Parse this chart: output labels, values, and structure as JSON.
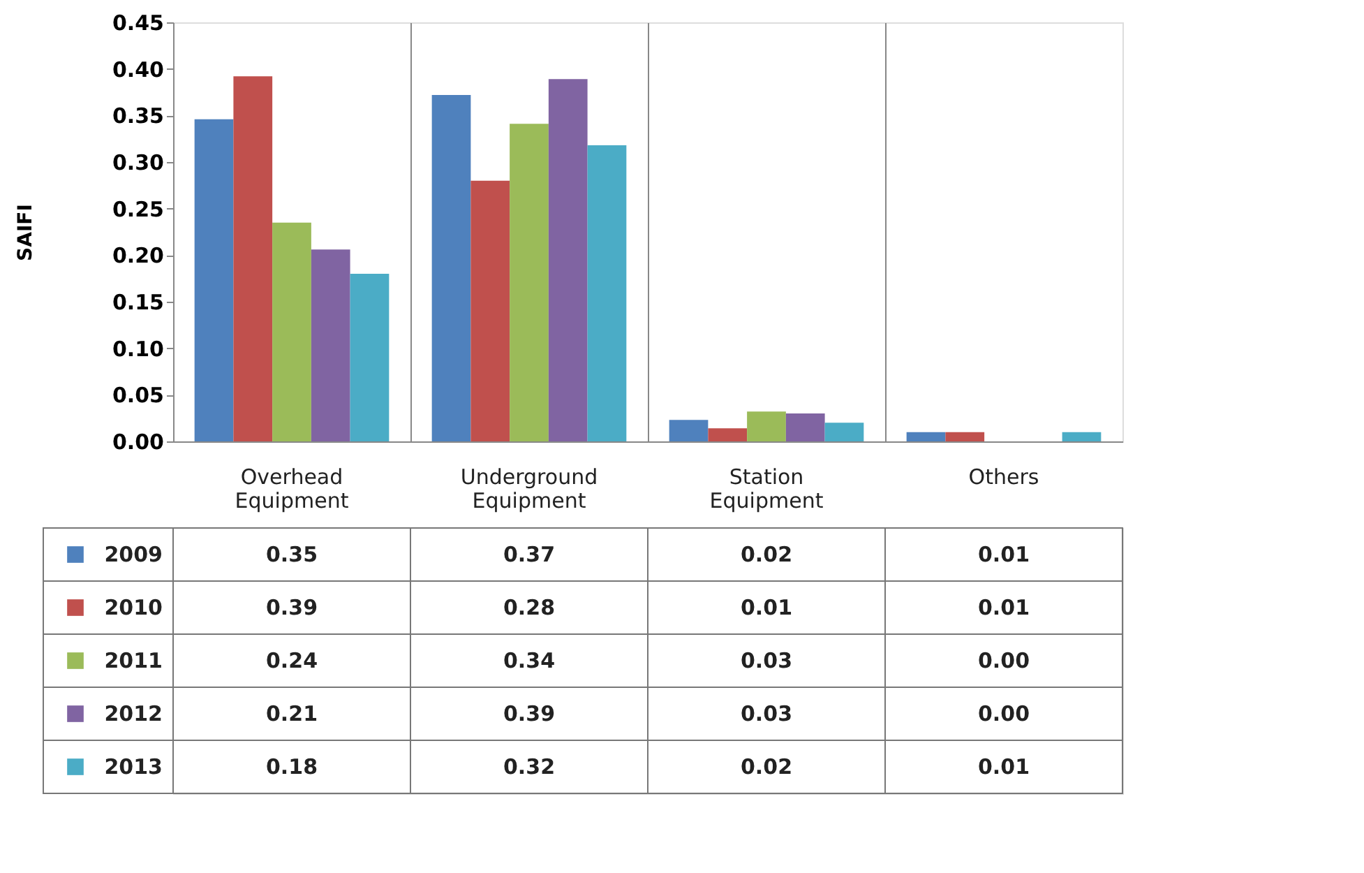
{
  "chart_data": {
    "type": "bar",
    "ylabel": "SAIFI",
    "categories": [
      "Overhead Equipment",
      "Underground Equipment",
      "Station Equipment",
      "Others"
    ],
    "ylim": [
      0,
      0.45
    ],
    "yticks": [
      {
        "value": 0,
        "label": "0.00"
      },
      {
        "value": 0.05,
        "label": "0.05"
      },
      {
        "value": 0.1,
        "label": "0.10"
      },
      {
        "value": 0.15,
        "label": "0.15"
      },
      {
        "value": 0.2,
        "label": "0.20"
      },
      {
        "value": 0.25,
        "label": "0.25"
      },
      {
        "value": 0.3,
        "label": "0.30"
      },
      {
        "value": 0.35,
        "label": "0.35"
      },
      {
        "value": 0.4,
        "label": "0.40"
      },
      {
        "value": 0.45,
        "label": "0.45"
      }
    ],
    "legend": "bottom",
    "series": [
      {
        "name": "2009",
        "color": "#4f81bd",
        "values": [
          0.346,
          0.372,
          0.023,
          0.01
        ],
        "value_labels": [
          "0.35",
          "0.37",
          "0.02",
          "0.01"
        ]
      },
      {
        "name": "2010",
        "color": "#c0504d",
        "values": [
          0.392,
          0.28,
          0.014,
          0.01
        ],
        "value_labels": [
          "0.39",
          "0.28",
          "0.01",
          "0.01"
        ]
      },
      {
        "name": "2011",
        "color": "#9bbb59",
        "values": [
          0.235,
          0.341,
          0.032,
          0
        ],
        "value_labels": [
          "0.24",
          "0.34",
          "0.03",
          "0.00"
        ]
      },
      {
        "name": "2012",
        "color": "#8064a2",
        "values": [
          0.206,
          0.389,
          0.03,
          0
        ],
        "value_labels": [
          "0.21",
          "0.39",
          "0.03",
          "0.00"
        ]
      },
      {
        "name": "2013",
        "color": "#4bacc6",
        "values": [
          0.18,
          0.318,
          0.02,
          0.01
        ],
        "value_labels": [
          "0.18",
          "0.32",
          "0.02",
          "0.01"
        ]
      }
    ]
  }
}
